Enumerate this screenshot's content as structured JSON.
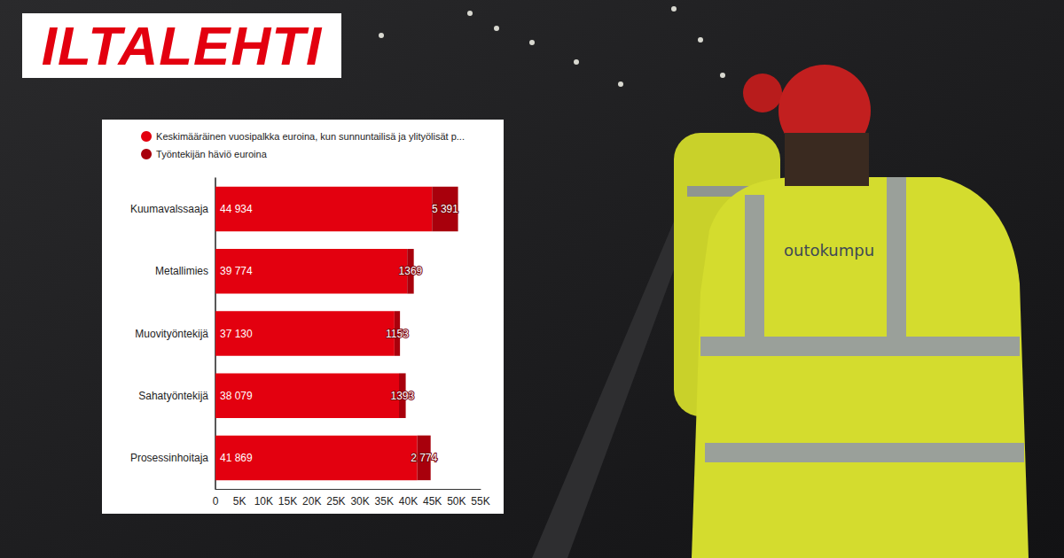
{
  "chart_data": {
    "type": "bar",
    "orientation": "horizontal",
    "stacked": true,
    "data_labels": true,
    "grid": false,
    "legend": "top",
    "annotations": [
      "ILTALEHTI",
      "outokumpu"
    ],
    "categories": [
      "Kuumavalssaaja",
      "Metallimies",
      "Muovityöntekijä",
      "Sahatyöntekijä",
      "Prosessinhoitaja"
    ],
    "series": [
      {
        "name": "Keskimääräinen vuosipalkka euroina, kun sunnuntailisä ja ylityölisät p...",
        "color": "#e3000f",
        "values": [
          44934,
          39774,
          37130,
          38079,
          41869
        ],
        "value_labels": [
          "44 934",
          "39 774",
          "37 130",
          "38 079",
          "41 869"
        ]
      },
      {
        "name": "Työntekijän häviö euroina",
        "color": "#a8000c",
        "values": [
          5391,
          1369,
          1153,
          1393,
          2774
        ],
        "value_labels": [
          "5 391",
          "1369",
          "1153",
          "1393",
          "2 774"
        ]
      }
    ],
    "xlim": [
      0,
      55000
    ],
    "xticks": [
      0,
      {
        "value": 5000,
        "label": "5K"
      },
      {
        "value": 10000,
        "label": "10K"
      },
      {
        "value": 15000,
        "label": "15K"
      },
      {
        "value": 20000,
        "label": "20K"
      },
      {
        "value": 25000,
        "label": "25K"
      },
      {
        "value": 30000,
        "label": "30K"
      },
      {
        "value": 35000,
        "label": "35K"
      },
      {
        "value": 40000,
        "label": "40K"
      },
      {
        "value": 45000,
        "label": "45K"
      },
      {
        "value": 50000,
        "label": "50K"
      },
      {
        "value": 55000,
        "label": "55K"
      }
    ]
  }
}
